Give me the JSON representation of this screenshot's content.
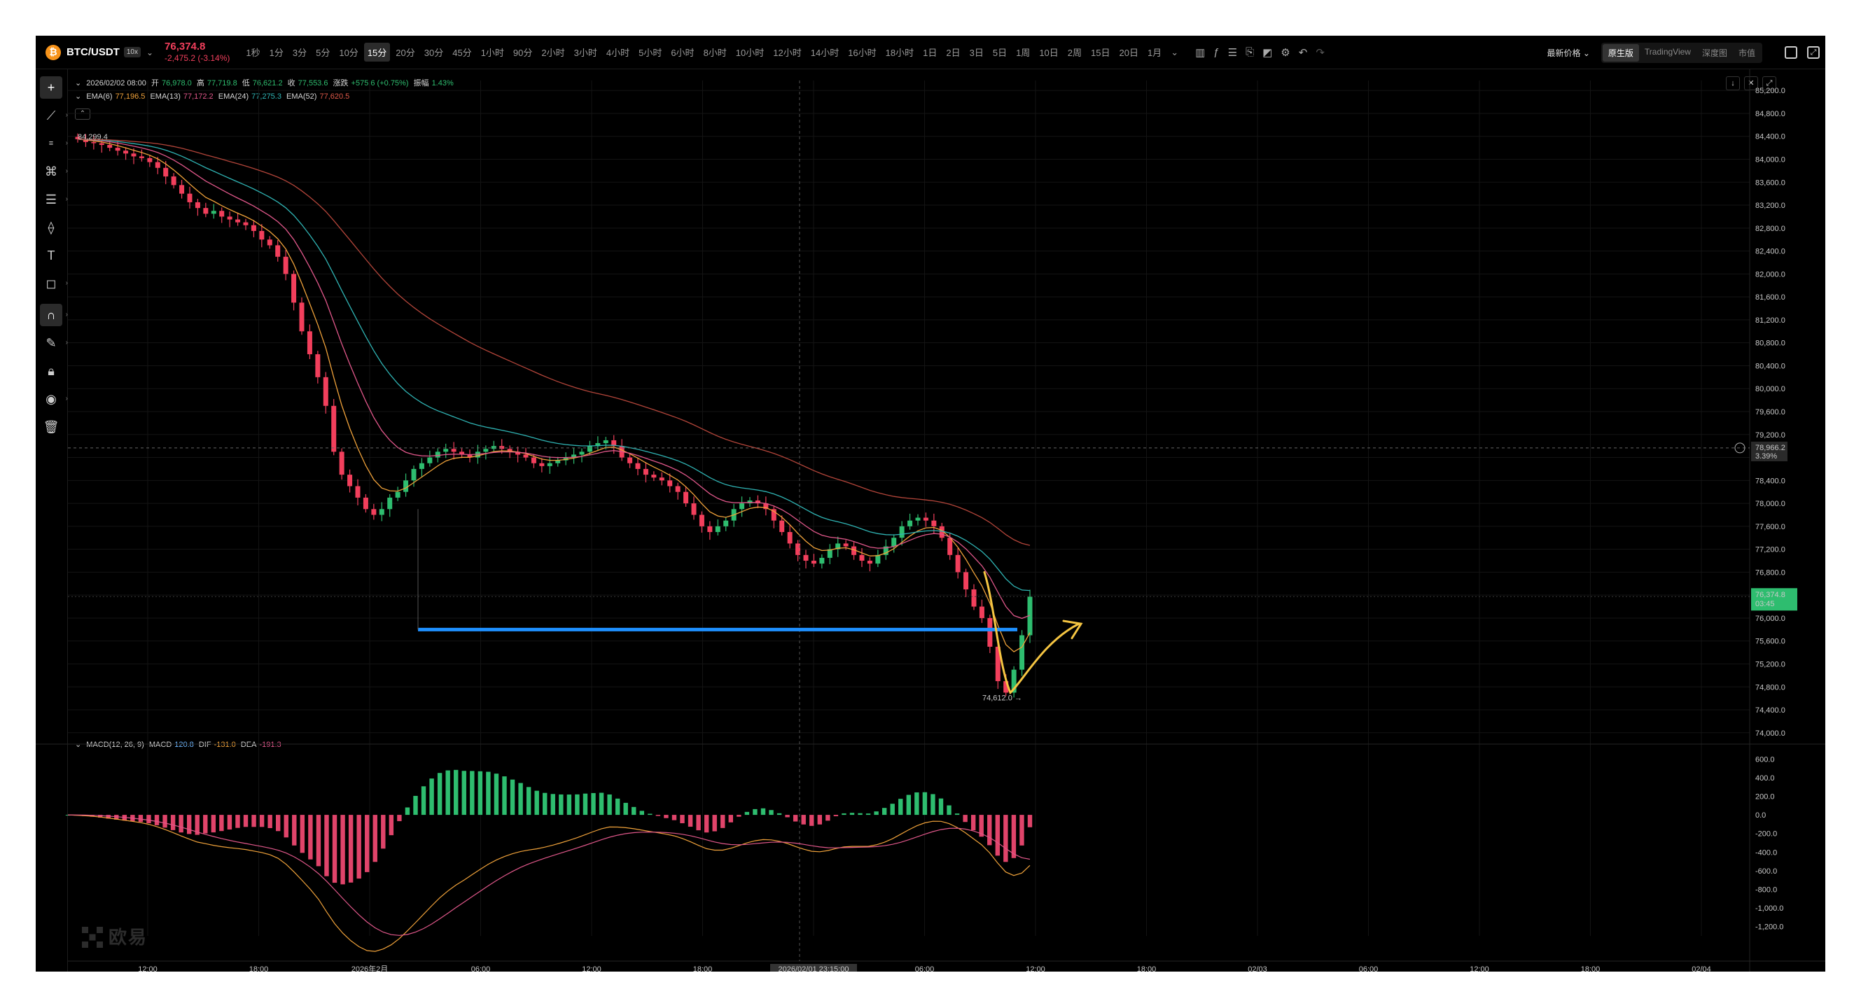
{
  "topbar": {
    "symbol": "BTC/USDT",
    "leverage": "10x",
    "last_price": "76,374.8",
    "change": "-2,475.2 (-3.14%)",
    "intervals": [
      "1秒",
      "1分",
      "3分",
      "5分",
      "10分",
      "15分",
      "20分",
      "30分",
      "45分",
      "1小时",
      "90分",
      "2小时",
      "3小时",
      "4小时",
      "5小时",
      "6小时",
      "8小时",
      "10小时",
      "12小时",
      "14小时",
      "16小时",
      "18小时",
      "1日",
      "2日",
      "3日",
      "5日",
      "1周",
      "10日",
      "2周",
      "15日",
      "20日",
      "1月"
    ],
    "active_interval": "15分",
    "latest_price_label": "最新价格",
    "views": [
      "原生版",
      "TradingView",
      "深度图",
      "市值"
    ],
    "active_view": "原生版"
  },
  "ohlc": {
    "date": "2026/02/02 08:00",
    "open_label": "开",
    "open": "76,978.0",
    "high_label": "高",
    "high": "77,719.8",
    "low_label": "低",
    "low": "76,621.2",
    "close_label": "收",
    "close": "77,553.6",
    "change_label": "涨跌",
    "change": "+575.6 (+0.75%)",
    "amp_label": "振幅",
    "amp": "1.43%"
  },
  "ema": {
    "e6_label": "EMA(6)",
    "e6": "77,196.5",
    "e13_label": "EMA(13)",
    "e13": "77,172.2",
    "e24_label": "EMA(24)",
    "e24": "77,275.3",
    "e52_label": "EMA(52)",
    "e52": "77,620.5"
  },
  "macd": {
    "label": "MACD(12, 26, 9)",
    "macd_label": "MACD",
    "macd": "120.8",
    "dif_label": "DIF",
    "dif": "-131.0",
    "dea_label": "DEA",
    "dea": "-191.3"
  },
  "chart_data": {
    "type": "candlestick",
    "price_axis": [
      "85,200.0",
      "84,800.0",
      "84,400.0",
      "84,000.0",
      "83,600.0",
      "83,200.0",
      "82,800.0",
      "82,400.0",
      "82,000.0",
      "81,600.0",
      "81,200.0",
      "80,800.0",
      "80,400.0",
      "80,000.0",
      "79,600.0",
      "79,200.0",
      "78,800.0",
      "78,400.0",
      "78,000.0",
      "77,600.0",
      "77,200.0",
      "76,800.0",
      "76,400.0",
      "76,000.0",
      "75,600.0",
      "75,200.0",
      "74,800.0",
      "74,400.0",
      "74,000.0"
    ],
    "macd_axis": [
      "600.0",
      "400.0",
      "200.0",
      "0.0",
      "-200.0",
      "-400.0",
      "-600.0",
      "-800.0",
      "-1,000.0",
      "-1,200.0"
    ],
    "time_axis": [
      "12:00",
      "18:00",
      "2026年2月",
      "06:00",
      "12:00",
      "18:00",
      "2026/02/01 23:15:00",
      "06:00",
      "12:00",
      "18:00",
      "02/03",
      "06:00",
      "12:00",
      "18:00",
      "02/04"
    ],
    "high_marker": "84,299.4",
    "low_marker": "74,612.0 →",
    "crosshair_price": "78,966.2",
    "crosshair_pct": "3.39%",
    "current_price": "76,374.8",
    "countdown": "03:45",
    "support_level": 75800,
    "ylim": [
      73900,
      85300
    ],
    "colors": {
      "up": "#2ebd6f",
      "down": "#f23f5c",
      "support": "#1e90ff",
      "annotation": "#f5c542"
    },
    "close_series": [
      84350,
      84300,
      84280,
      84250,
      84200,
      84150,
      84100,
      84050,
      84020,
      83950,
      83850,
      83700,
      83550,
      83400,
      83250,
      83150,
      83050,
      83100,
      83000,
      82950,
      82900,
      82850,
      82750,
      82600,
      82500,
      82300,
      82000,
      81500,
      81000,
      80600,
      80200,
      79700,
      78900,
      78500,
      78300,
      78100,
      77900,
      77800,
      77900,
      78100,
      78200,
      78400,
      78600,
      78700,
      78800,
      78900,
      78950,
      78900,
      78850,
      78800,
      78900,
      78950,
      79000,
      78950,
      78900,
      78850,
      78800,
      78700,
      78650,
      78700,
      78750,
      78800,
      78850,
      78900,
      79000,
      79050,
      79100,
      79000,
      78800,
      78700,
      78600,
      78500,
      78450,
      78400,
      78300,
      78200,
      78000,
      77800,
      77600,
      77500,
      77600,
      77700,
      77900,
      78000,
      78050,
      78000,
      77900,
      77700,
      77500,
      77300,
      77100,
      77000,
      76950,
      77050,
      77200,
      77300,
      77250,
      77100,
      77000,
      76950,
      77100,
      77250,
      77400,
      77600,
      77700,
      77750,
      77700,
      77600,
      77400,
      77100,
      76800,
      76500,
      76200,
      76000,
      75500,
      74900,
      74700,
      75100,
      75700,
      76374
    ]
  }
}
